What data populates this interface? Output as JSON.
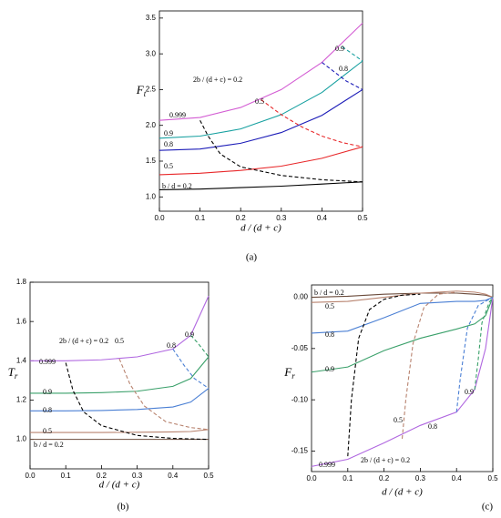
{
  "chart_data": [
    {
      "type": "line",
      "caption": "(a)",
      "ylabel": "F",
      "ylabel_subscript": "t",
      "xlabel": "d / (d + c)",
      "xlim": [
        0,
        0.5
      ],
      "xticks": [
        {
          "value": 0,
          "label": "0.0"
        },
        0.1,
        0.2,
        0.3,
        0.4,
        0.5
      ],
      "ylim": [
        0.8,
        3.6
      ],
      "yticks": [
        {
          "value": 1,
          "label": "1.0"
        },
        1.5,
        {
          "value": 2,
          "label": "2.0"
        },
        2.5,
        {
          "value": 3,
          "label": "3.0"
        },
        3.5
      ],
      "series": [
        {
          "name": "b / d = 0.2",
          "color": "#000000",
          "linestyle": "solid",
          "x": [
            0,
            0.1,
            0.2,
            0.3,
            0.4,
            0.5
          ],
          "values": [
            1.1,
            1.11,
            1.13,
            1.15,
            1.18,
            1.21
          ]
        },
        {
          "name": "0.5",
          "color": "#e8282a",
          "linestyle": "solid",
          "x": [
            0,
            0.1,
            0.2,
            0.3,
            0.4,
            0.5
          ],
          "values": [
            1.31,
            1.33,
            1.37,
            1.43,
            1.54,
            1.7
          ]
        },
        {
          "name": "0.8",
          "color": "#1d1db8",
          "linestyle": "solid",
          "x": [
            0,
            0.1,
            0.2,
            0.3,
            0.4,
            0.5
          ],
          "values": [
            1.65,
            1.67,
            1.75,
            1.9,
            2.14,
            2.5
          ]
        },
        {
          "name": "0.9",
          "color": "#16a0a0",
          "linestyle": "solid",
          "x": [
            0,
            0.1,
            0.2,
            0.3,
            0.4,
            0.5
          ],
          "values": [
            1.82,
            1.85,
            1.95,
            2.15,
            2.46,
            2.9
          ]
        },
        {
          "name": "0.999",
          "color": "#d35cd3",
          "linestyle": "solid",
          "x": [
            0,
            0.1,
            0.2,
            0.3,
            0.4,
            0.5
          ],
          "values": [
            2.07,
            2.11,
            2.25,
            2.5,
            2.88,
            3.43
          ]
        },
        {
          "name": "2b / (d + c) = 0.2",
          "color": "#000000",
          "linestyle": "dashed",
          "x": [
            0.1,
            0.12,
            0.15,
            0.2,
            0.3,
            0.4,
            0.5
          ],
          "values": [
            2.07,
            1.85,
            1.6,
            1.42,
            1.3,
            1.24,
            1.21
          ]
        },
        {
          "name": "0.5",
          "color": "#e8282a",
          "linestyle": "dashed",
          "x": [
            0.25,
            0.3,
            0.35,
            0.4,
            0.45,
            0.5
          ],
          "values": [
            2.36,
            2.15,
            1.98,
            1.85,
            1.76,
            1.7
          ]
        },
        {
          "name": "0.8",
          "color": "#1d1db8",
          "linestyle": "dashed",
          "x": [
            0.4,
            0.43,
            0.46,
            0.5
          ],
          "values": [
            2.88,
            2.75,
            2.62,
            2.5
          ]
        },
        {
          "name": "0.9",
          "color": "#16a0a0",
          "linestyle": "dashed",
          "x": [
            0.45,
            0.47,
            0.5
          ],
          "values": [
            3.1,
            3.02,
            2.9
          ]
        }
      ]
    },
    {
      "type": "line",
      "caption": "(b)",
      "ylabel": "T",
      "ylabel_subscript": "r",
      "xlabel": "d / (d + c)",
      "xlim": [
        0,
        0.5
      ],
      "xticks": [
        {
          "value": 0,
          "label": "0.0"
        },
        0.1,
        0.2,
        0.3,
        0.4,
        0.5
      ],
      "ylim": [
        0.85,
        1.8
      ],
      "yticks": [
        {
          "value": 1,
          "label": "1.0"
        },
        1.2,
        1.4,
        1.6,
        1.8
      ],
      "series": [
        {
          "name": "b / d = 0.2",
          "color": "#6b4b3b",
          "linestyle": "solid",
          "x": [
            0,
            0.1,
            0.2,
            0.3,
            0.4,
            0.45,
            0.5
          ],
          "values": [
            1.0,
            1.0,
            1.0,
            1.0,
            1.0,
            1.0,
            1.0
          ]
        },
        {
          "name": "0.5",
          "color": "#b8836f",
          "linestyle": "solid",
          "x": [
            0,
            0.1,
            0.2,
            0.3,
            0.4,
            0.45,
            0.5
          ],
          "values": [
            1.035,
            1.035,
            1.035,
            1.036,
            1.038,
            1.04,
            1.05
          ]
        },
        {
          "name": "0.8",
          "color": "#4a7fd4",
          "linestyle": "solid",
          "x": [
            0,
            0.1,
            0.2,
            0.3,
            0.4,
            0.45,
            0.5
          ],
          "values": [
            1.145,
            1.145,
            1.147,
            1.152,
            1.165,
            1.19,
            1.26
          ]
        },
        {
          "name": "0.9",
          "color": "#3aa06a",
          "linestyle": "solid",
          "x": [
            0,
            0.1,
            0.2,
            0.3,
            0.4,
            0.45,
            0.5
          ],
          "values": [
            1.235,
            1.235,
            1.238,
            1.245,
            1.27,
            1.31,
            1.42
          ]
        },
        {
          "name": "0.999",
          "color": "#b067e0",
          "linestyle": "solid",
          "x": [
            0,
            0.1,
            0.2,
            0.3,
            0.4,
            0.45,
            0.5
          ],
          "values": [
            1.4,
            1.4,
            1.405,
            1.42,
            1.46,
            1.53,
            1.73
          ]
        },
        {
          "name": "2b / (d + c) = 0.2",
          "color": "#000000",
          "linestyle": "dashed",
          "x": [
            0.1,
            0.12,
            0.15,
            0.2,
            0.3,
            0.4,
            0.5
          ],
          "values": [
            1.39,
            1.25,
            1.14,
            1.07,
            1.02,
            1.005,
            1.0
          ]
        },
        {
          "name": "0.5",
          "color": "#b8836f",
          "linestyle": "dashed",
          "x": [
            0.25,
            0.28,
            0.32,
            0.38,
            0.45,
            0.5
          ],
          "values": [
            1.41,
            1.28,
            1.17,
            1.09,
            1.06,
            1.05
          ]
        },
        {
          "name": "0.8",
          "color": "#4a7fd4",
          "linestyle": "dashed",
          "x": [
            0.4,
            0.43,
            0.46,
            0.5
          ],
          "values": [
            1.46,
            1.38,
            1.31,
            1.26
          ]
        },
        {
          "name": "0.9",
          "color": "#3aa06a",
          "linestyle": "dashed",
          "x": [
            0.45,
            0.47,
            0.5
          ],
          "values": [
            1.53,
            1.49,
            1.42
          ]
        }
      ]
    },
    {
      "type": "line",
      "caption": "(c)",
      "ylabel": "F",
      "ylabel_subscript": "r",
      "xlabel": "d / (d + c)",
      "xlim": [
        0,
        0.5
      ],
      "xticks": [
        {
          "value": 0,
          "label": "0.0"
        },
        0.1,
        0.2,
        0.3,
        0.4,
        0.5
      ],
      "ylim": [
        -0.17,
        0.012
      ],
      "yticks": [
        {
          "value": 0,
          "label": "0.00"
        },
        -0.05,
        {
          "value": -0.1,
          "label": "-0.10"
        },
        -0.15
      ],
      "series": [
        {
          "name": "b / d = 0.2",
          "color": "#6b4b3b",
          "linestyle": "solid",
          "x": [
            0,
            0.1,
            0.2,
            0.3,
            0.4,
            0.45,
            0.48,
            0.5
          ],
          "values": [
            0,
            0.001,
            0.003,
            0.004,
            0.004,
            0.003,
            0.002,
            0
          ]
        },
        {
          "name": "0.5",
          "color": "#b8836f",
          "linestyle": "solid",
          "x": [
            0,
            0.1,
            0.2,
            0.3,
            0.4,
            0.45,
            0.48,
            0.5
          ],
          "values": [
            -0.005,
            -0.004,
            0.0,
            0.004,
            0.006,
            0.005,
            0.003,
            0
          ]
        },
        {
          "name": "0.8",
          "color": "#4a7fd4",
          "linestyle": "solid",
          "x": [
            0,
            0.1,
            0.2,
            0.3,
            0.4,
            0.45,
            0.48,
            0.5
          ],
          "values": [
            -0.035,
            -0.033,
            -0.02,
            -0.006,
            -0.004,
            -0.004,
            -0.003,
            0
          ]
        },
        {
          "name": "0.9",
          "color": "#3aa06a",
          "linestyle": "solid",
          "x": [
            0,
            0.1,
            0.2,
            0.3,
            0.4,
            0.45,
            0.48,
            0.5
          ],
          "values": [
            -0.073,
            -0.068,
            -0.052,
            -0.04,
            -0.031,
            -0.026,
            -0.018,
            0
          ]
        },
        {
          "name": "0.999",
          "color": "#b067e0",
          "linestyle": "solid",
          "x": [
            0,
            0.1,
            0.2,
            0.3,
            0.4,
            0.45,
            0.48,
            0.5
          ],
          "values": [
            -0.165,
            -0.158,
            -0.142,
            -0.125,
            -0.112,
            -0.09,
            -0.05,
            0
          ]
        },
        {
          "name": "2b / (d + c) = 0.2",
          "color": "#000000",
          "linestyle": "dashed",
          "x": [
            0.1,
            0.11,
            0.13,
            0.16,
            0.2,
            0.25,
            0.3
          ],
          "values": [
            -0.155,
            -0.1,
            -0.04,
            -0.012,
            -0.002,
            0.002,
            0.003
          ]
        },
        {
          "name": "0.5",
          "color": "#b8836f",
          "linestyle": "dashed",
          "x": [
            0.25,
            0.26,
            0.28,
            0.31,
            0.35,
            0.4
          ],
          "values": [
            -0.138,
            -0.1,
            -0.045,
            -0.01,
            0.003,
            0.005
          ]
        },
        {
          "name": "0.8",
          "color": "#4a7fd4",
          "linestyle": "dashed",
          "x": [
            0.4,
            0.41,
            0.43,
            0.46,
            0.5
          ],
          "values": [
            -0.112,
            -0.08,
            -0.03,
            -0.008,
            0
          ]
        },
        {
          "name": "0.9",
          "color": "#3aa06a",
          "linestyle": "dashed",
          "x": [
            0.45,
            0.46,
            0.47,
            0.49,
            0.5
          ],
          "values": [
            -0.09,
            -0.06,
            -0.025,
            -0.005,
            0
          ]
        }
      ]
    }
  ]
}
